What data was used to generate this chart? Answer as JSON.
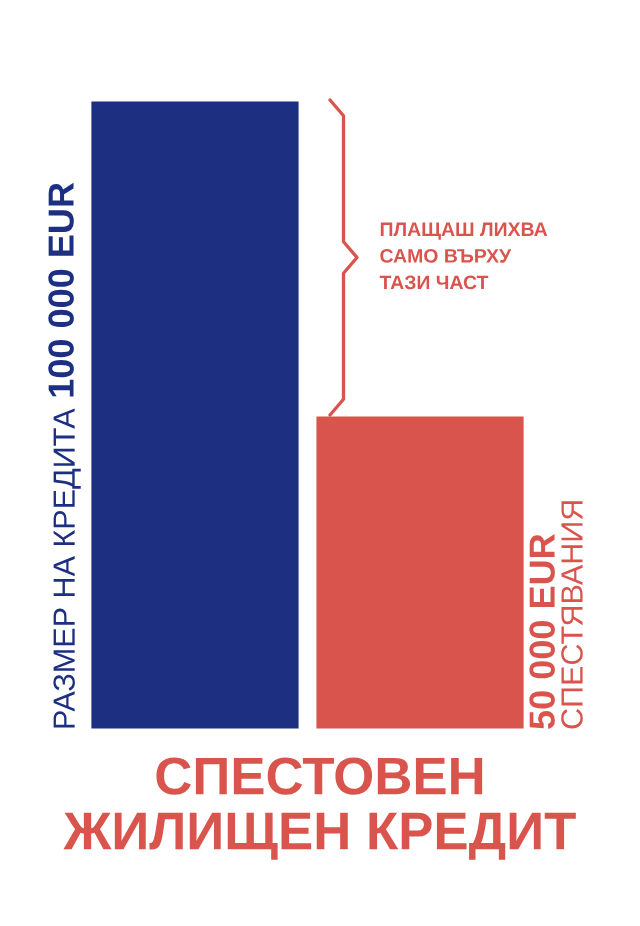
{
  "chart_data": {
    "type": "bar",
    "title": "СПЕСТОВЕН\nЖИЛИЩЕН КРЕДИТ",
    "categories": [
      "РАЗМЕР НА КРЕДИТА",
      "СПЕСТЯВАНИЯ"
    ],
    "values": [
      100000,
      50000
    ],
    "value_labels": [
      "100 000 EUR",
      "50 000 EUR"
    ],
    "colors": [
      "#1d2f80",
      "#d9544c"
    ],
    "annotations": [
      "ПЛАЩАШ ЛИХВА\nСАМО ВЪРХУ\nТАЗИ ЧАСТ"
    ]
  }
}
